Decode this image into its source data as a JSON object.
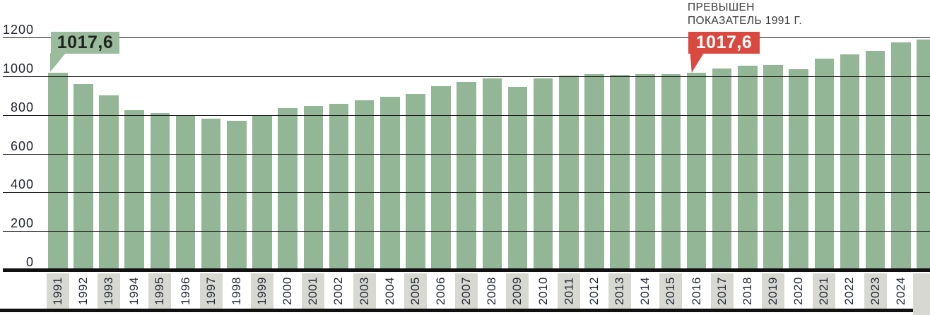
{
  "annotation": {
    "line1": "ПРЕВЫШЕН",
    "line2": "ПОКАЗАТЕЛЬ 1991 Г."
  },
  "callout_1991": {
    "value_label": "1017,6"
  },
  "callout_2016": {
    "value_label": "1017,6"
  },
  "colors": {
    "bar_green": "#93b696",
    "callout_green_bg": "#9abb9c",
    "callout_red_bg": "#d9493f",
    "label_box_gray": "#d8d8d3",
    "axis_text": "#20242c",
    "year_text": "#1f2630",
    "annotation_text": "#3b3b3b",
    "grid_line": "#1a1a1a",
    "axis_line": "#101010"
  },
  "chart_data": {
    "type": "bar",
    "categories": [
      "1991",
      "1992",
      "1993",
      "1994",
      "1995",
      "1996",
      "1997",
      "1998",
      "1999",
      "2000",
      "2001",
      "2002",
      "2003",
      "2004",
      "2005",
      "2006",
      "2007",
      "2008",
      "2009",
      "2010",
      "2011",
      "2012",
      "2013",
      "2014",
      "2015",
      "2016",
      "2017",
      "2018",
      "2019",
      "2020",
      "2021",
      "2022",
      "2023",
      "2024"
    ],
    "values": [
      1017.6,
      960,
      900,
      825,
      810,
      795,
      780,
      770,
      798,
      835,
      848,
      856,
      875,
      895,
      910,
      950,
      970,
      990,
      945,
      990,
      1005,
      1012,
      1008,
      1012,
      1010,
      1017.6,
      1040,
      1055,
      1057,
      1035,
      1090,
      1112,
      1131,
      1175
    ],
    "partial_rightmost_bar_value": 1190,
    "ylim": [
      0,
      1200
    ],
    "yticks": [
      0,
      200,
      400,
      600,
      800,
      1000,
      1200
    ],
    "grid": "horizontal",
    "xlabel": "",
    "ylabel": "",
    "title": "",
    "number_format": "decimal-comma",
    "labeled_points": [
      {
        "year": "1991",
        "value": 1017.6,
        "callout_color": "#9abb9c"
      },
      {
        "year": "2016",
        "value": 1017.6,
        "callout_color": "#d9493f"
      }
    ],
    "year_label_box_pattern": "odd years gray, even years white"
  }
}
